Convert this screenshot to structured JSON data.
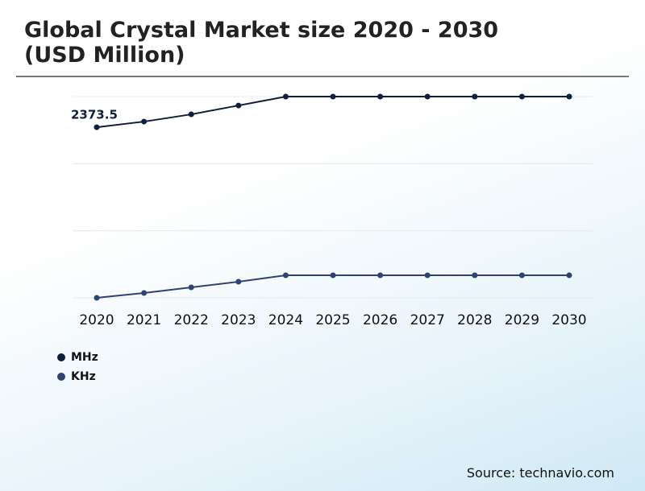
{
  "chart_data": {
    "type": "line",
    "title": "Global Crystal Market size 2020 - 2030 (USD Million)",
    "source": "Source: technavio.com",
    "categories": [
      "2020",
      "2021",
      "2022",
      "2023",
      "2024",
      "2025",
      "2026",
      "2027",
      "2028",
      "2029",
      "2030"
    ],
    "series": [
      {
        "name": "MHz",
        "color": "#0d1f3c",
        "values": [
          2373.5,
          2452,
          2553,
          2676,
          2800,
          2800,
          2800,
          2800,
          2800,
          2800,
          2800
        ]
      },
      {
        "name": "KHz",
        "color": "#2e4373",
        "values": [
          0,
          67,
          146,
          224,
          314,
          314,
          314,
          314,
          314,
          314,
          314
        ]
      }
    ],
    "ylim": [
      0,
      2800
    ],
    "yticks": [
      0,
      933,
      1867,
      2800
    ],
    "grid": true
  }
}
